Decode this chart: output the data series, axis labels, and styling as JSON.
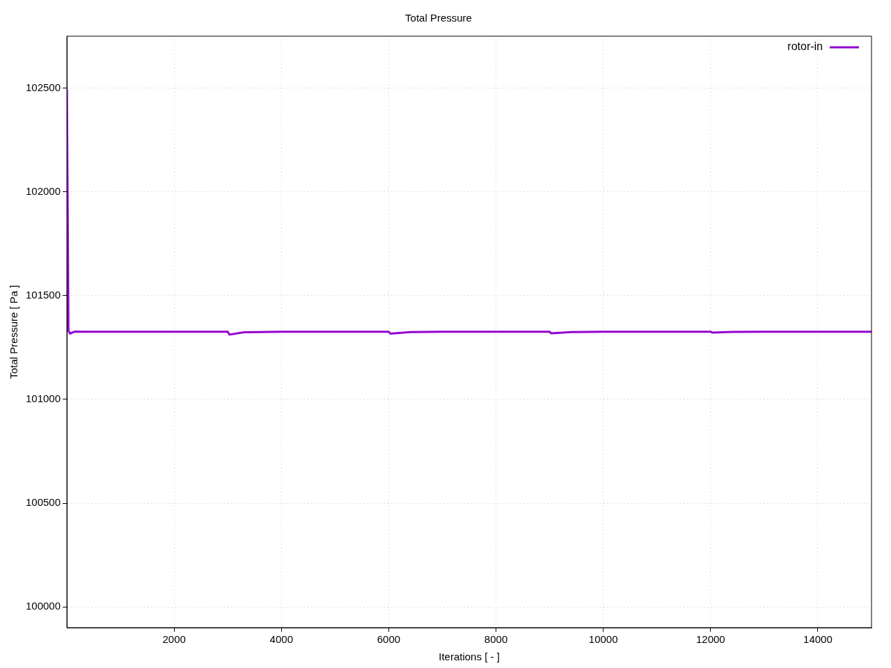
{
  "chart_data": {
    "type": "line",
    "title": "Total Pressure",
    "xlabel": "Iterations [ - ]",
    "ylabel": "Total Pressure [ Pa ]",
    "x": [
      1,
      30,
      60,
      150,
      300,
      1000,
      3000,
      3030,
      3300,
      4000,
      6000,
      6030,
      6400,
      7000,
      9000,
      9030,
      9400,
      10000,
      12000,
      12030,
      12400,
      13000,
      15000
    ],
    "series": [
      {
        "name": "rotor-in",
        "color": "#9400d3",
        "values": [
          102490,
          101330,
          101317,
          101327,
          101326,
          101326,
          101326,
          101312,
          101323,
          101326,
          101326,
          101317,
          101324,
          101326,
          101326,
          101318,
          101324,
          101326,
          101326,
          101322,
          101325,
          101326,
          101326
        ]
      }
    ],
    "xlim": [
      0,
      15000
    ],
    "xticks": [
      2000,
      4000,
      6000,
      8000,
      10000,
      12000,
      14000
    ],
    "ylim": [
      99900,
      102750
    ],
    "yticks": [
      100000,
      100500,
      101000,
      101500,
      102000,
      102500
    ],
    "grid": true,
    "legend": "top right",
    "marker": "none",
    "line_style": "solid"
  }
}
